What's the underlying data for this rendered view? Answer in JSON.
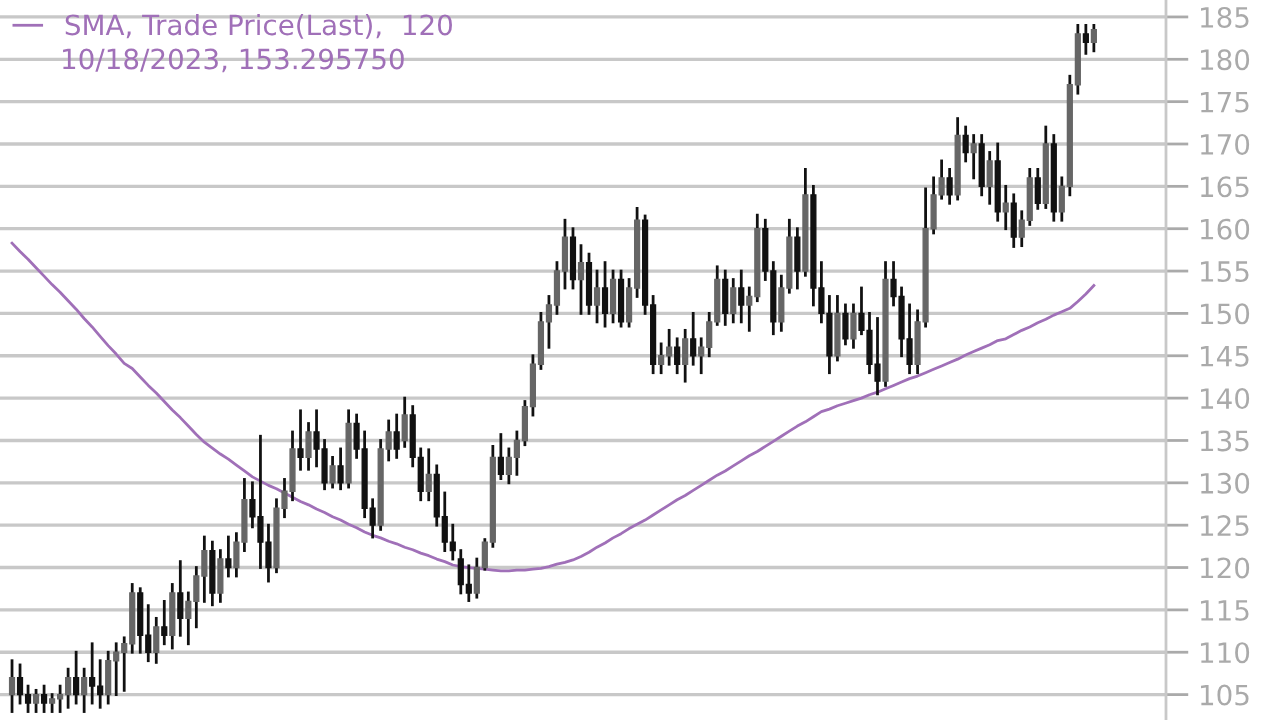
{
  "chart_data": {
    "type": "candlestick",
    "annotations": [
      "10/18/2023, 153.295750"
    ],
    "categories": [
      null,
      null,
      null,
      null,
      null,
      null,
      null,
      null,
      null,
      null,
      null,
      null,
      null,
      null,
      null,
      null,
      null,
      null,
      null,
      null,
      null,
      null,
      null,
      null,
      null,
      null,
      null,
      null,
      null,
      null,
      null,
      null,
      null,
      null,
      null,
      null,
      null,
      null,
      null,
      null,
      null,
      null,
      null,
      null,
      null,
      null,
      null,
      null,
      null,
      null,
      null,
      null,
      null,
      null,
      null,
      null,
      null,
      null,
      null,
      null,
      null,
      null,
      null,
      null,
      null,
      null,
      null,
      null,
      null,
      null,
      null,
      null,
      null,
      null,
      null,
      null,
      null,
      null,
      null,
      null,
      null,
      null,
      null,
      null,
      null,
      null,
      null,
      null,
      null,
      null,
      null,
      null,
      null,
      null,
      null,
      null,
      null,
      null,
      null,
      null,
      null,
      null,
      null,
      null,
      null,
      null,
      null,
      null,
      null,
      null,
      null,
      null,
      null,
      null,
      null,
      null,
      null,
      null,
      null,
      null,
      null,
      null,
      null,
      null,
      null,
      null,
      null,
      null,
      null,
      null,
      null,
      null,
      null,
      null,
      null,
      null
    ],
    "ohlc": [
      [
        105,
        109,
        103,
        107
      ],
      [
        107,
        108.5,
        104,
        105
      ],
      [
        105,
        106,
        103,
        104
      ],
      [
        104,
        105.5,
        103,
        105
      ],
      [
        105,
        106,
        103,
        104
      ],
      [
        104,
        105,
        103,
        104.5
      ],
      [
        104.5,
        106,
        103,
        105
      ],
      [
        105,
        108,
        103.5,
        107
      ],
      [
        107,
        110,
        104,
        105
      ],
      [
        105,
        108,
        103,
        107
      ],
      [
        107,
        111,
        104,
        106
      ],
      [
        106,
        109,
        103.5,
        105
      ],
      [
        105,
        110,
        104,
        109
      ],
      [
        109,
        111,
        105,
        110
      ],
      [
        110,
        111.7,
        105.5,
        111
      ],
      [
        111,
        118,
        110,
        117
      ],
      [
        117,
        117.5,
        110,
        112
      ],
      [
        112,
        115.5,
        109,
        110
      ],
      [
        110,
        114,
        108.8,
        113
      ],
      [
        113,
        116,
        111,
        112
      ],
      [
        112,
        118,
        110.5,
        117
      ],
      [
        117,
        120.7,
        112,
        114
      ],
      [
        114,
        117,
        111,
        116
      ],
      [
        116,
        120,
        113,
        119
      ],
      [
        119,
        123.6,
        116,
        122
      ],
      [
        122,
        123,
        115.6,
        117
      ],
      [
        117,
        122,
        116,
        121
      ],
      [
        121,
        123.6,
        119,
        120
      ],
      [
        120,
        124,
        119,
        123
      ],
      [
        123,
        130.4,
        122,
        128
      ],
      [
        128,
        130,
        124.8,
        126
      ],
      [
        126,
        135.5,
        120,
        123
      ],
      [
        123,
        125,
        118.4,
        120
      ],
      [
        120,
        128,
        119.5,
        127
      ],
      [
        127,
        130.4,
        126,
        129
      ],
      [
        129,
        136,
        128,
        134
      ],
      [
        134,
        138.5,
        131.6,
        133
      ],
      [
        133,
        137,
        131.6,
        136
      ],
      [
        136,
        138.5,
        132,
        134
      ],
      [
        134,
        135,
        129.3,
        130
      ],
      [
        130,
        133,
        129.5,
        132
      ],
      [
        132,
        134,
        129.3,
        130
      ],
      [
        130,
        138.5,
        129.5,
        137
      ],
      [
        137,
        138,
        133,
        134
      ],
      [
        134,
        136,
        126,
        127
      ],
      [
        127,
        128,
        123.6,
        125
      ],
      [
        125,
        135,
        124.5,
        134
      ],
      [
        134,
        137.3,
        132.7,
        136
      ],
      [
        136,
        138,
        133,
        134
      ],
      [
        135,
        140,
        134.3,
        138
      ],
      [
        138,
        139,
        132,
        133
      ],
      [
        133,
        134,
        128,
        129
      ],
      [
        129,
        133.9,
        128,
        131
      ],
      [
        131,
        132,
        125,
        126
      ],
      [
        126,
        128.8,
        122,
        123
      ],
      [
        123,
        125,
        121,
        122
      ],
      [
        121,
        122,
        117,
        118
      ],
      [
        118,
        120.2,
        116.1,
        117
      ],
      [
        117,
        121,
        116.5,
        120
      ],
      [
        120,
        123.3,
        119.8,
        123
      ],
      [
        123,
        134.3,
        122.5,
        133
      ],
      [
        133,
        135.7,
        130.5,
        131
      ],
      [
        131,
        134,
        130,
        133
      ],
      [
        133,
        136,
        131,
        135
      ],
      [
        135,
        139.6,
        134.5,
        139
      ],
      [
        139,
        145,
        138,
        144
      ],
      [
        144,
        150,
        143.5,
        149
      ],
      [
        149,
        152,
        146,
        151
      ],
      [
        151,
        156,
        150,
        155
      ],
      [
        155,
        161,
        153,
        159
      ],
      [
        159,
        160,
        153,
        154
      ],
      [
        154,
        158,
        150,
        156
      ],
      [
        156,
        157,
        150,
        151
      ],
      [
        151,
        155,
        149,
        153
      ],
      [
        153,
        156,
        148.5,
        150
      ],
      [
        150,
        155,
        149,
        154
      ],
      [
        154,
        155,
        148.5,
        149
      ],
      [
        149,
        154,
        148.5,
        153
      ],
      [
        153,
        162.4,
        152,
        161
      ],
      [
        161,
        161.5,
        150,
        151
      ],
      [
        151,
        152,
        143,
        144
      ],
      [
        144,
        146.4,
        143,
        145
      ],
      [
        145,
        148,
        144,
        146
      ],
      [
        146,
        147,
        143,
        144
      ],
      [
        144,
        148,
        142,
        147
      ],
      [
        147,
        150,
        144,
        145
      ],
      [
        145,
        147,
        143,
        146
      ],
      [
        146,
        150,
        145,
        149
      ],
      [
        149,
        155.5,
        148.7,
        154
      ],
      [
        154,
        155,
        148.7,
        150
      ],
      [
        150,
        154,
        149,
        153
      ],
      [
        153,
        155,
        149,
        151
      ],
      [
        151,
        153,
        148,
        152
      ],
      [
        152,
        161.6,
        151.5,
        160
      ],
      [
        160,
        161,
        154,
        155
      ],
      [
        155,
        156,
        147.6,
        149
      ],
      [
        149,
        154.4,
        148,
        153
      ],
      [
        153,
        161,
        152.5,
        159
      ],
      [
        159,
        160,
        153,
        155
      ],
      [
        155,
        167,
        154.5,
        164
      ],
      [
        164,
        165,
        151,
        153
      ],
      [
        153,
        156,
        149,
        150
      ],
      [
        150,
        152,
        143,
        145
      ],
      [
        145,
        152,
        144.5,
        150
      ],
      [
        150,
        151,
        146.4,
        147
      ],
      [
        147,
        151,
        146,
        150
      ],
      [
        150,
        153,
        147.6,
        148
      ],
      [
        148,
        150,
        143,
        144
      ],
      [
        144,
        149.4,
        140.5,
        142
      ],
      [
        142,
        156,
        141.5,
        154
      ],
      [
        154,
        156,
        151,
        152
      ],
      [
        152,
        153,
        145,
        147
      ],
      [
        147,
        151,
        143,
        144
      ],
      [
        144,
        150.3,
        143,
        149
      ],
      [
        149,
        164.7,
        148.5,
        160
      ],
      [
        160,
        166,
        159.5,
        164
      ],
      [
        164,
        168,
        163.6,
        166
      ],
      [
        166,
        167,
        163,
        164
      ],
      [
        164,
        173,
        163.5,
        171
      ],
      [
        171,
        172,
        168,
        169
      ],
      [
        169,
        171,
        166,
        170
      ],
      [
        170,
        171,
        164,
        165
      ],
      [
        165,
        169,
        163,
        168
      ],
      [
        168,
        170,
        161,
        162
      ],
      [
        162,
        165,
        160,
        163
      ],
      [
        163,
        164,
        157.9,
        159
      ],
      [
        159,
        162,
        158,
        161
      ],
      [
        161,
        167,
        160.5,
        166
      ],
      [
        166,
        167,
        162.4,
        163
      ],
      [
        163,
        172,
        162.5,
        170
      ],
      [
        170,
        171,
        161,
        162
      ],
      [
        162,
        166,
        161,
        165
      ],
      [
        165,
        178,
        164,
        177
      ],
      [
        177,
        184,
        176,
        183
      ],
      [
        183,
        184,
        180.7,
        182
      ],
      [
        182,
        184,
        181,
        183.5
      ]
    ],
    "series": [
      {
        "type": "line",
        "name": "SMA, Trade Price(Last),  120",
        "color": "#a070b8",
        "values": [
          158.3,
          157.3,
          156.4,
          155.4,
          154.4,
          153.4,
          152.5,
          151.5,
          150.5,
          149.4,
          148.4,
          147.3,
          146.2,
          145.2,
          144.1,
          143.5,
          142.5,
          141.5,
          140.6,
          139.6,
          138.6,
          137.7,
          136.7,
          135.7,
          134.8,
          134.1,
          133.4,
          132.8,
          132.1,
          131.4,
          130.7,
          130.2,
          129.7,
          129.3,
          128.8,
          128.3,
          127.8,
          127.4,
          126.9,
          126.5,
          126,
          125.6,
          125.1,
          124.7,
          124.2,
          123.8,
          123.5,
          123.1,
          122.8,
          122.4,
          122.1,
          121.7,
          121.4,
          121,
          120.7,
          120.3,
          120.1,
          120,
          119.9,
          119.8,
          119.7,
          119.6,
          119.6,
          119.7,
          119.7,
          119.8,
          119.9,
          120.1,
          120.4,
          120.6,
          120.9,
          121.3,
          121.8,
          122.4,
          122.9,
          123.5,
          124,
          124.6,
          125.1,
          125.6,
          126.2,
          126.8,
          127.4,
          128,
          128.5,
          129.1,
          129.7,
          130.3,
          130.9,
          131.4,
          132,
          132.6,
          133.2,
          133.7,
          134.3,
          134.9,
          135.5,
          136.1,
          136.7,
          137.2,
          137.8,
          138.4,
          138.7,
          139.1,
          139.4,
          139.7,
          140,
          140.4,
          140.7,
          141.1,
          141.5,
          141.9,
          142.3,
          142.6,
          143,
          143.4,
          143.8,
          144.2,
          144.6,
          145.1,
          145.5,
          145.9,
          146.3,
          146.8,
          147,
          147.5,
          148,
          148.4,
          148.9,
          149.3,
          149.8,
          150.2,
          150.6,
          151.4,
          152.3,
          153.3
        ]
      }
    ],
    "ylim": [
      102,
      187
    ],
    "yticks": [
      105,
      110,
      115,
      120,
      125,
      130,
      135,
      140,
      145,
      150,
      155,
      160,
      165,
      170,
      175,
      180,
      185
    ],
    "tick_labels": "y",
    "grid": "y",
    "legend": "top left"
  }
}
